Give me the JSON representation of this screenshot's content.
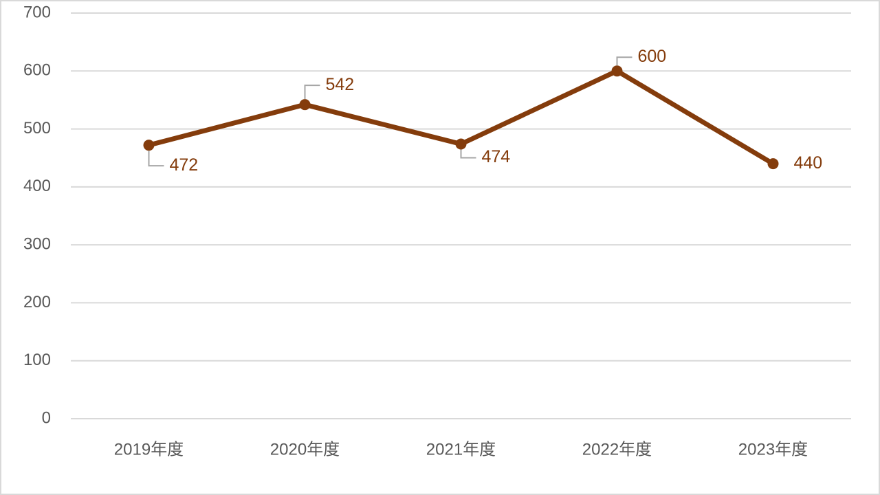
{
  "chart_data": {
    "type": "line",
    "categories": [
      "2019年度",
      "2020年度",
      "2021年度",
      "2022年度",
      "2023年度"
    ],
    "values": [
      472,
      542,
      474,
      600,
      440
    ],
    "color": "#843c0c",
    "ylim": [
      0,
      700
    ],
    "yticks": [
      0,
      100,
      200,
      300,
      400,
      500,
      600,
      700
    ],
    "grid": true
  }
}
